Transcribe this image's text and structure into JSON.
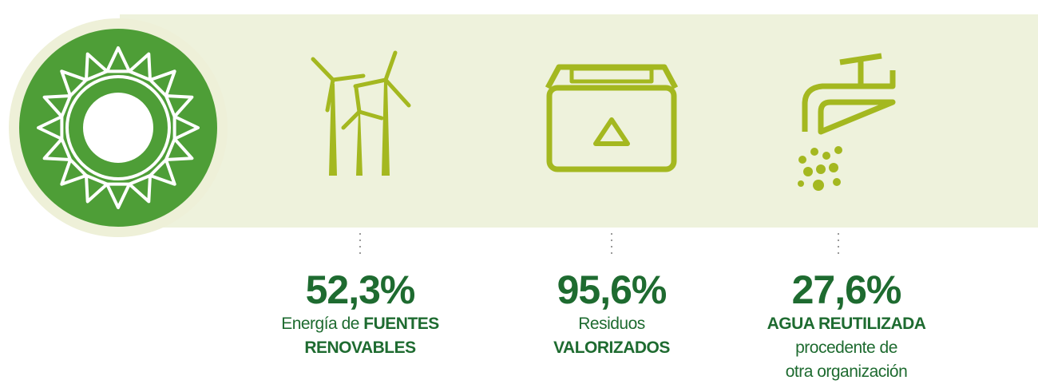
{
  "stats": [
    {
      "value": "52,3%",
      "lines": [
        [
          {
            "text": "Energía de ",
            "bold": false
          },
          {
            "text": "FUENTES",
            "bold": true
          }
        ],
        [
          {
            "text": "RENOVABLES",
            "bold": true
          }
        ]
      ]
    },
    {
      "value": "95,6%",
      "lines": [
        [
          {
            "text": "Residuos",
            "bold": false
          }
        ],
        [
          {
            "text": "VALORIZADOS",
            "bold": true
          }
        ]
      ]
    },
    {
      "value": "27,6%",
      "lines": [
        [
          {
            "text": "AGUA REUTILIZADA",
            "bold": true
          }
        ],
        [
          {
            "text": "procedente de",
            "bold": false
          }
        ],
        [
          {
            "text": "otra organización",
            "bold": false
          }
        ]
      ]
    }
  ]
}
